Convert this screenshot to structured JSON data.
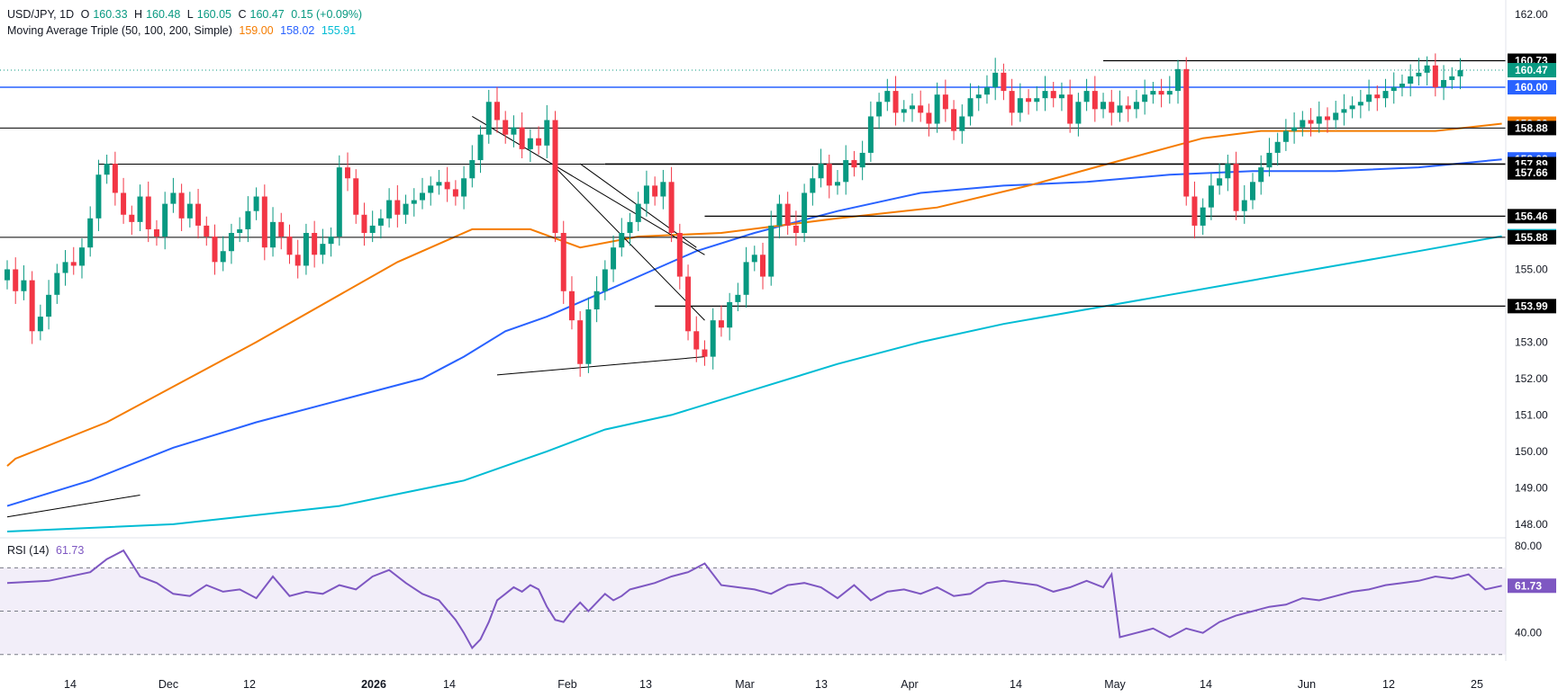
{
  "header": {
    "symbol": "USD/JPY, 1D",
    "o_label": "O",
    "o": "160.33",
    "h_label": "H",
    "h": "160.48",
    "l_label": "L",
    "l": "160.05",
    "c_label": "C",
    "c": "160.47",
    "change": "0.15 (+0.09%)",
    "ma_title": "Moving Average Triple (50, 100, 200, Simple)",
    "ma50": "159.00",
    "ma100": "158.02",
    "ma200": "155.91",
    "rsi_title": "RSI (14)",
    "rsi": "61.73",
    "colors": {
      "up": "#089981",
      "down": "#f23645",
      "ma50": "#f57c00",
      "ma100": "#2962ff",
      "ma200": "#00bcd4",
      "rsi": "#7e57c2"
    }
  },
  "chart_data": [
    {
      "type": "candlestick",
      "ylim": [
        147.7,
        162.2
      ],
      "yticks": [
        "162.00",
        "155.00",
        "153.00",
        "152.00",
        "151.00",
        "150.00",
        "149.00",
        "148.00"
      ],
      "xticks": [
        "14",
        "Dec",
        "12",
        "2026",
        "14",
        "Feb",
        "13",
        "Mar",
        "13",
        "Apr",
        "14",
        "May",
        "14",
        "Jun",
        "12",
        "25"
      ],
      "levels": [
        {
          "value": 160.73,
          "label": "160.73",
          "color": "#000000"
        },
        {
          "value": 160.47,
          "label": "160.47",
          "color": "#089981"
        },
        {
          "value": 160.0,
          "label": "160.00",
          "color": "#2962ff"
        },
        {
          "value": 159.0,
          "label": "159.00",
          "color": "#f57c00"
        },
        {
          "value": 158.88,
          "label": "158.88",
          "color": "#000000"
        },
        {
          "value": 158.02,
          "label": "158.02",
          "color": "#2962ff"
        },
        {
          "value": 157.89,
          "label": "157.89",
          "color": "#000000"
        },
        {
          "value": 157.66,
          "label": "157.66",
          "color": "#000000"
        },
        {
          "value": 156.46,
          "label": "156.46",
          "color": "#000000"
        },
        {
          "value": 155.91,
          "label": "155.91",
          "color": "#00bcd4"
        },
        {
          "value": 155.88,
          "label": "155.88",
          "color": "#000000"
        },
        {
          "value": 153.99,
          "label": "153.99",
          "color": "#000000"
        }
      ],
      "closes": [
        155.0,
        154.4,
        154.7,
        153.3,
        153.7,
        154.3,
        154.9,
        155.2,
        155.1,
        155.6,
        156.4,
        157.6,
        157.9,
        157.1,
        156.5,
        156.3,
        157.0,
        156.1,
        155.9,
        156.8,
        157.1,
        156.4,
        156.8,
        156.2,
        155.9,
        155.2,
        155.5,
        156.0,
        156.1,
        156.6,
        157.0,
        155.6,
        156.3,
        155.9,
        155.4,
        155.1,
        156.0,
        155.4,
        155.7,
        155.9,
        157.8,
        157.5,
        156.5,
        156.0,
        156.2,
        156.4,
        156.9,
        156.5,
        156.8,
        156.9,
        157.1,
        157.3,
        157.4,
        157.2,
        157.0,
        157.5,
        158.0,
        158.7,
        159.6,
        159.1,
        158.7,
        158.9,
        158.3,
        158.6,
        158.4,
        159.1,
        156.0,
        154.4,
        153.6,
        152.4,
        153.9,
        154.4,
        155.0,
        155.6,
        156.0,
        156.3,
        156.8,
        157.3,
        157.0,
        157.4,
        156.0,
        154.8,
        153.3,
        152.8,
        152.6,
        153.6,
        153.4,
        154.1,
        154.3,
        155.2,
        155.4,
        154.8,
        156.2,
        156.8,
        156.2,
        156.0,
        157.1,
        157.5,
        157.9,
        157.3,
        157.4,
        158.0,
        157.8,
        158.2,
        159.2,
        159.6,
        159.9,
        159.3,
        159.4,
        159.5,
        159.3,
        159.0,
        159.8,
        159.4,
        158.8,
        159.2,
        159.7,
        159.8,
        160.0,
        160.4,
        159.9,
        159.3,
        159.7,
        159.6,
        159.7,
        159.9,
        159.7,
        159.8,
        159.0,
        159.6,
        159.9,
        159.4,
        159.6,
        159.3,
        159.5,
        159.4,
        159.6,
        159.8,
        159.9,
        159.8,
        159.9,
        160.5,
        157.0,
        156.2,
        156.7,
        157.3,
        157.5,
        157.9,
        156.6,
        156.9,
        157.4,
        157.8,
        158.2,
        158.5,
        158.8,
        158.9,
        159.1,
        159.0,
        159.2,
        159.1,
        159.3,
        159.4,
        159.5,
        159.6,
        159.8,
        159.7,
        159.9,
        160.0,
        160.1,
        160.3,
        160.4,
        160.6,
        160.0,
        160.2,
        160.3,
        160.47
      ],
      "ma50": {
        "x": [
          0,
          1,
          12,
          30,
          47,
          56,
          63,
          69,
          76,
          86,
          100,
          112,
          123,
          131,
          144,
          151,
          172,
          180
        ],
        "y": [
          149.6,
          149.8,
          150.8,
          153.0,
          155.2,
          156.1,
          156.1,
          155.6,
          155.9,
          156.0,
          156.4,
          156.7,
          157.3,
          157.8,
          158.6,
          158.8,
          158.8,
          159.0
        ]
      },
      "ma100": {
        "x": [
          0,
          10,
          20,
          30,
          40,
          50,
          55,
          60,
          65,
          70,
          77,
          83,
          90,
          100,
          110,
          120,
          130,
          140,
          150,
          160,
          170,
          180
        ],
        "y": [
          148.5,
          149.2,
          150.1,
          150.8,
          151.4,
          152.0,
          152.6,
          153.3,
          153.7,
          154.2,
          154.9,
          155.5,
          156.0,
          156.6,
          157.1,
          157.3,
          157.4,
          157.6,
          157.7,
          157.7,
          157.8,
          158.02
        ]
      },
      "ma200": {
        "x": [
          0,
          20,
          40,
          55,
          65,
          72,
          80,
          90,
          100,
          110,
          120,
          130,
          140,
          150,
          160,
          170,
          180
        ],
        "y": [
          147.8,
          148.0,
          148.5,
          149.2,
          150.0,
          150.6,
          151.0,
          151.7,
          152.4,
          153.0,
          153.5,
          153.9,
          154.3,
          154.7,
          155.1,
          155.5,
          155.91
        ]
      }
    },
    {
      "type": "line",
      "title": "RSI (14)",
      "ylim": [
        27,
        83
      ],
      "yticks": [
        "80.00",
        "40.00"
      ],
      "bands": [
        70,
        50,
        30
      ],
      "last_label": "61.73",
      "x": [
        0,
        5,
        10,
        12,
        14,
        16,
        18,
        20,
        22,
        24,
        26,
        28,
        30,
        32,
        34,
        36,
        38,
        40,
        42,
        44,
        46,
        48,
        50,
        52,
        54,
        55,
        56,
        57,
        58,
        59,
        60,
        61,
        62,
        63,
        64,
        65,
        66,
        67,
        68,
        69,
        70,
        71,
        72,
        73,
        74,
        75,
        76,
        78,
        80,
        82,
        84,
        86,
        88,
        90,
        92,
        94,
        96,
        98,
        100,
        102,
        104,
        106,
        108,
        110,
        112,
        114,
        116,
        118,
        120,
        122,
        124,
        126,
        128,
        130,
        132,
        133,
        134,
        136,
        138,
        140,
        142,
        144,
        146,
        148,
        150,
        152,
        154,
        156,
        158,
        160,
        162,
        164,
        166,
        168,
        170,
        172,
        174,
        176,
        178,
        180
      ],
      "y": [
        63,
        64,
        68,
        74,
        78,
        66,
        63,
        58,
        57,
        62,
        59,
        60,
        56,
        66,
        57,
        59,
        58,
        62,
        60,
        66,
        69,
        63,
        58,
        55,
        46,
        40,
        33,
        37,
        45,
        55,
        58,
        61,
        59,
        62,
        60,
        52,
        46,
        45,
        50,
        54,
        50,
        54,
        58,
        55,
        57,
        60,
        61,
        63,
        66,
        68,
        72,
        62,
        61,
        60,
        58,
        62,
        63,
        61,
        56,
        62,
        55,
        59,
        60,
        58,
        61,
        57,
        58,
        63,
        64,
        63,
        62,
        59,
        61,
        64,
        61,
        67,
        38,
        40,
        42,
        38,
        42,
        40,
        45,
        48,
        50,
        52,
        53,
        56,
        55,
        57,
        59,
        60,
        62,
        63,
        64,
        66,
        65,
        67,
        60,
        61.73
      ]
    }
  ]
}
